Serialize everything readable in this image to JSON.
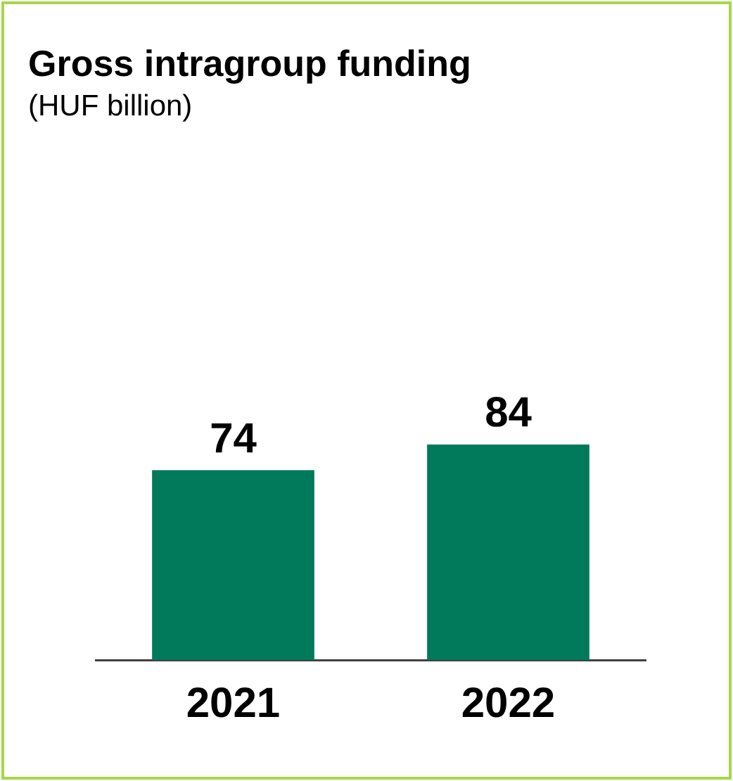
{
  "chart_data": {
    "type": "bar",
    "title": "Gross intragroup funding",
    "subtitle": "(HUF billion)",
    "categories": [
      "2021",
      "2022"
    ],
    "values": [
      74,
      84
    ],
    "color": "#007a5a",
    "data_labels": true,
    "grid": false,
    "legend": false
  }
}
